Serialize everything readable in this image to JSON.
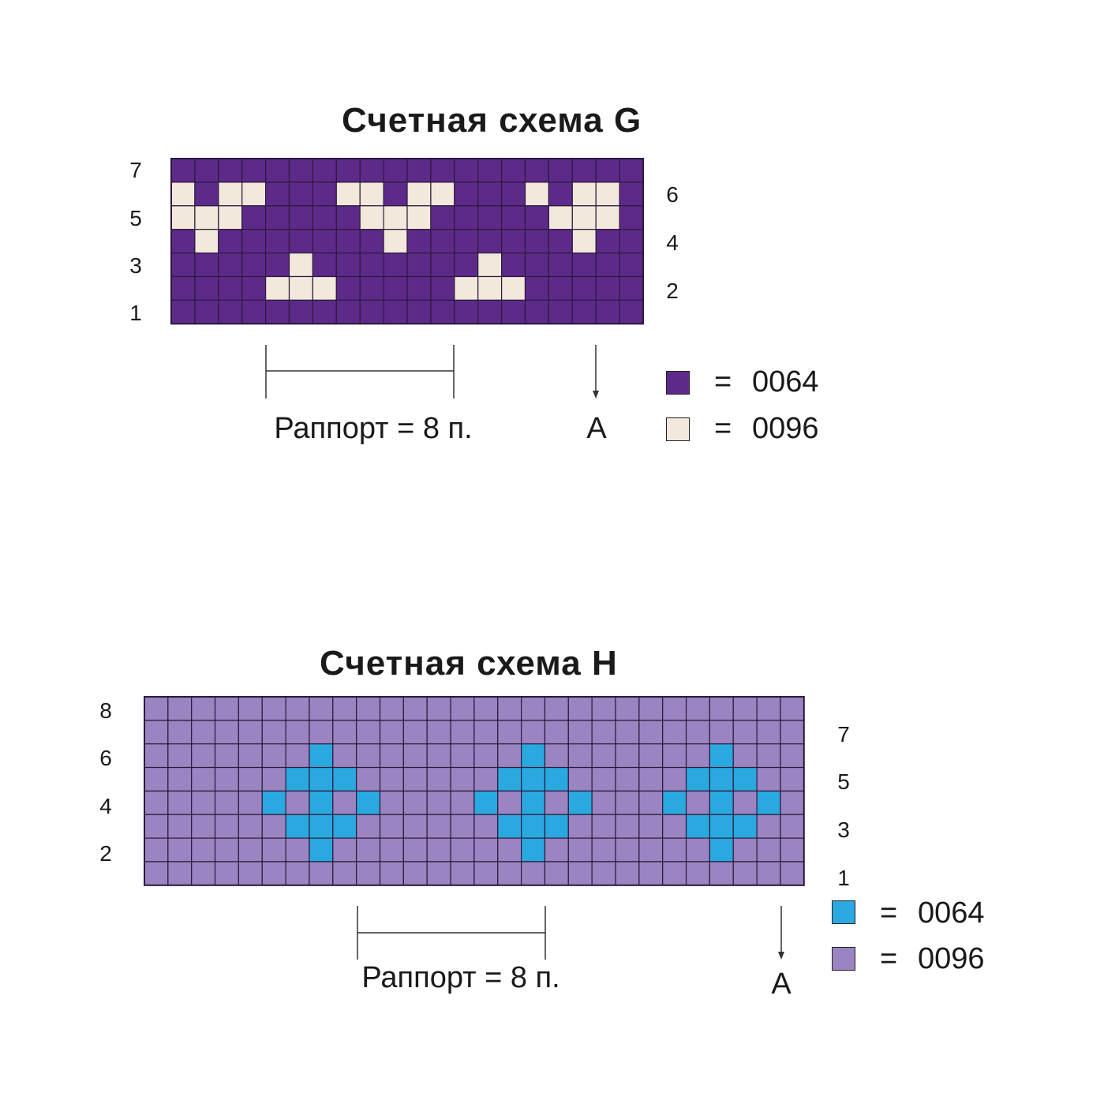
{
  "colors": {
    "g_dark": "#5e2a8a",
    "g_light": "#f2e8dc",
    "h_dark": "#2aa9e0",
    "h_light": "#9b84c2",
    "grid_line": "#2a1a3a"
  },
  "chart_g": {
    "title": "Счетная схема G",
    "left_row_labels": [
      "7",
      "5",
      "3",
      "1"
    ],
    "right_row_labels": [
      "6",
      "4",
      "2"
    ],
    "rapport_label": "Раппорт = 8 п.",
    "marker_label": "A",
    "legend": [
      {
        "color": "#5e2a8a",
        "eq": "=",
        "code": "0064"
      },
      {
        "color": "#f2e8dc",
        "eq": "=",
        "code": "0096"
      }
    ],
    "columns": 20,
    "rows_top_to_bottom": [
      "00000000000000000000",
      "10110001101100010110",
      "11100000111000001110",
      "01000000010000000100",
      "00000100000001000000",
      "00001110000011100000",
      "00000000000000000000"
    ]
  },
  "chart_h": {
    "title": "Счетная схема H",
    "left_row_labels": [
      "8",
      "6",
      "4",
      "2"
    ],
    "right_row_labels": [
      "7",
      "5",
      "3",
      "1"
    ],
    "rapport_label": "Раппорт = 8 п.",
    "marker_label": "A",
    "legend": [
      {
        "color": "#2aa9e0",
        "eq": "=",
        "code": "0064"
      },
      {
        "color": "#9b84c2",
        "eq": "=",
        "code": "0096"
      }
    ],
    "columns": 28,
    "rows_top_to_bottom": [
      "0000000000000000000000000000",
      "0000000000000000000000000000",
      "0000000100000000100000001000",
      "0000001110000001110000011100",
      "0000010101000010101000101010",
      "0000001110000001110000011100",
      "0000000100000000100000001000",
      "0000000000000000000000000000"
    ]
  }
}
